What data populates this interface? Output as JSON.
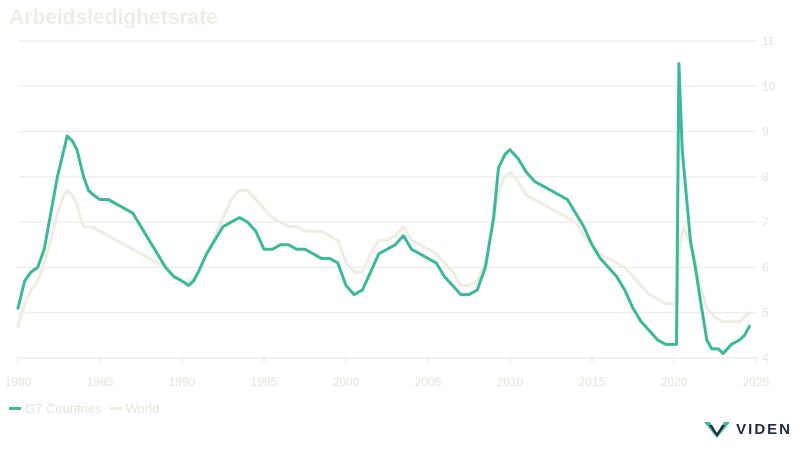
{
  "chart_data": {
    "type": "line",
    "title": "Arbeidsledighetsrate",
    "xlim": [
      1980,
      2025
    ],
    "ylim": [
      4,
      11
    ],
    "x_ticks": [
      1980,
      1985,
      1990,
      1995,
      2000,
      2005,
      2010,
      2015,
      2020,
      2025
    ],
    "y_ticks": [
      4,
      5,
      6,
      7,
      8,
      9,
      10,
      11
    ],
    "grid": true,
    "legend_position": "bottom-left",
    "series": [
      {
        "name": "G7 Countries",
        "color": "#3db89a",
        "points": [
          [
            1980.0,
            5.1
          ],
          [
            1980.4,
            5.7
          ],
          [
            1980.8,
            5.9
          ],
          [
            1981.2,
            6.0
          ],
          [
            1981.6,
            6.4
          ],
          [
            1982.0,
            7.2
          ],
          [
            1982.4,
            8.0
          ],
          [
            1982.8,
            8.6
          ],
          [
            1983.0,
            8.9
          ],
          [
            1983.3,
            8.8
          ],
          [
            1983.6,
            8.6
          ],
          [
            1983.8,
            8.3
          ],
          [
            1984.0,
            8.0
          ],
          [
            1984.3,
            7.7
          ],
          [
            1984.6,
            7.6
          ],
          [
            1985.0,
            7.5
          ],
          [
            1985.5,
            7.5
          ],
          [
            1986.0,
            7.4
          ],
          [
            1986.5,
            7.3
          ],
          [
            1987.0,
            7.2
          ],
          [
            1987.5,
            6.9
          ],
          [
            1988.0,
            6.6
          ],
          [
            1988.5,
            6.3
          ],
          [
            1989.0,
            6.0
          ],
          [
            1989.5,
            5.8
          ],
          [
            1990.0,
            5.7
          ],
          [
            1990.4,
            5.6
          ],
          [
            1990.7,
            5.7
          ],
          [
            1991.0,
            5.9
          ],
          [
            1991.5,
            6.3
          ],
          [
            1992.0,
            6.6
          ],
          [
            1992.5,
            6.9
          ],
          [
            1993.0,
            7.0
          ],
          [
            1993.5,
            7.1
          ],
          [
            1994.0,
            7.0
          ],
          [
            1994.5,
            6.8
          ],
          [
            1995.0,
            6.4
          ],
          [
            1995.5,
            6.4
          ],
          [
            1996.0,
            6.5
          ],
          [
            1996.5,
            6.5
          ],
          [
            1997.0,
            6.4
          ],
          [
            1997.5,
            6.4
          ],
          [
            1998.0,
            6.3
          ],
          [
            1998.5,
            6.2
          ],
          [
            1999.0,
            6.2
          ],
          [
            1999.5,
            6.1
          ],
          [
            2000.0,
            5.6
          ],
          [
            2000.5,
            5.4
          ],
          [
            2001.0,
            5.5
          ],
          [
            2001.5,
            5.9
          ],
          [
            2002.0,
            6.3
          ],
          [
            2002.5,
            6.4
          ],
          [
            2003.0,
            6.5
          ],
          [
            2003.5,
            6.7
          ],
          [
            2004.0,
            6.4
          ],
          [
            2004.5,
            6.3
          ],
          [
            2005.0,
            6.2
          ],
          [
            2005.5,
            6.1
          ],
          [
            2006.0,
            5.8
          ],
          [
            2006.5,
            5.6
          ],
          [
            2007.0,
            5.4
          ],
          [
            2007.5,
            5.4
          ],
          [
            2008.0,
            5.5
          ],
          [
            2008.5,
            6.0
          ],
          [
            2009.0,
            7.1
          ],
          [
            2009.3,
            8.2
          ],
          [
            2009.7,
            8.5
          ],
          [
            2010.0,
            8.6
          ],
          [
            2010.5,
            8.4
          ],
          [
            2011.0,
            8.1
          ],
          [
            2011.5,
            7.9
          ],
          [
            2012.0,
            7.8
          ],
          [
            2012.5,
            7.7
          ],
          [
            2013.0,
            7.6
          ],
          [
            2013.5,
            7.5
          ],
          [
            2014.0,
            7.2
          ],
          [
            2014.5,
            6.9
          ],
          [
            2015.0,
            6.5
          ],
          [
            2015.5,
            6.2
          ],
          [
            2016.0,
            6.0
          ],
          [
            2016.5,
            5.8
          ],
          [
            2017.0,
            5.5
          ],
          [
            2017.5,
            5.1
          ],
          [
            2018.0,
            4.8
          ],
          [
            2018.5,
            4.6
          ],
          [
            2019.0,
            4.4
          ],
          [
            2019.5,
            4.3
          ],
          [
            2020.0,
            4.3
          ],
          [
            2020.15,
            4.3
          ],
          [
            2020.3,
            10.5
          ],
          [
            2020.5,
            8.6
          ],
          [
            2020.8,
            7.4
          ],
          [
            2021.0,
            6.6
          ],
          [
            2021.3,
            6.0
          ],
          [
            2021.6,
            5.3
          ],
          [
            2022.0,
            4.4
          ],
          [
            2022.3,
            4.2
          ],
          [
            2022.7,
            4.2
          ],
          [
            2023.0,
            4.1
          ],
          [
            2023.5,
            4.3
          ],
          [
            2024.0,
            4.4
          ],
          [
            2024.3,
            4.5
          ],
          [
            2024.6,
            4.7
          ]
        ]
      },
      {
        "name": "World",
        "color": "#efece1",
        "points": [
          [
            1980.0,
            4.7
          ],
          [
            1980.4,
            5.2
          ],
          [
            1980.8,
            5.5
          ],
          [
            1981.2,
            5.7
          ],
          [
            1981.6,
            6.1
          ],
          [
            1982.0,
            6.6
          ],
          [
            1982.4,
            7.2
          ],
          [
            1982.8,
            7.6
          ],
          [
            1983.0,
            7.7
          ],
          [
            1983.3,
            7.6
          ],
          [
            1983.6,
            7.4
          ],
          [
            1983.8,
            7.1
          ],
          [
            1984.0,
            6.9
          ],
          [
            1984.5,
            6.9
          ],
          [
            1985.0,
            6.8
          ],
          [
            1985.5,
            6.7
          ],
          [
            1986.0,
            6.6
          ],
          [
            1986.5,
            6.5
          ],
          [
            1987.0,
            6.4
          ],
          [
            1987.5,
            6.3
          ],
          [
            1988.0,
            6.2
          ],
          [
            1988.5,
            6.1
          ],
          [
            1989.0,
            6.0
          ],
          [
            1989.5,
            5.8
          ],
          [
            1990.0,
            5.7
          ],
          [
            1990.5,
            5.7
          ],
          [
            1991.0,
            5.9
          ],
          [
            1991.5,
            6.3
          ],
          [
            1992.0,
            6.7
          ],
          [
            1992.5,
            7.1
          ],
          [
            1993.0,
            7.5
          ],
          [
            1993.5,
            7.7
          ],
          [
            1994.0,
            7.7
          ],
          [
            1994.5,
            7.5
          ],
          [
            1995.0,
            7.3
          ],
          [
            1995.5,
            7.1
          ],
          [
            1996.0,
            7.0
          ],
          [
            1996.5,
            6.9
          ],
          [
            1997.0,
            6.9
          ],
          [
            1997.5,
            6.8
          ],
          [
            1998.0,
            6.8
          ],
          [
            1998.5,
            6.8
          ],
          [
            1999.0,
            6.7
          ],
          [
            1999.5,
            6.6
          ],
          [
            2000.0,
            6.1
          ],
          [
            2000.5,
            5.9
          ],
          [
            2001.0,
            5.9
          ],
          [
            2001.5,
            6.3
          ],
          [
            2002.0,
            6.6
          ],
          [
            2002.5,
            6.6
          ],
          [
            2003.0,
            6.7
          ],
          [
            2003.5,
            6.9
          ],
          [
            2004.0,
            6.6
          ],
          [
            2004.5,
            6.5
          ],
          [
            2005.0,
            6.4
          ],
          [
            2005.5,
            6.3
          ],
          [
            2006.0,
            6.1
          ],
          [
            2006.5,
            5.9
          ],
          [
            2007.0,
            5.6
          ],
          [
            2007.5,
            5.6
          ],
          [
            2008.0,
            5.7
          ],
          [
            2008.5,
            6.1
          ],
          [
            2009.0,
            7.0
          ],
          [
            2009.3,
            7.7
          ],
          [
            2009.7,
            8.0
          ],
          [
            2010.0,
            8.1
          ],
          [
            2010.5,
            7.9
          ],
          [
            2011.0,
            7.6
          ],
          [
            2011.5,
            7.5
          ],
          [
            2012.0,
            7.4
          ],
          [
            2012.5,
            7.3
          ],
          [
            2013.0,
            7.2
          ],
          [
            2013.5,
            7.1
          ],
          [
            2014.0,
            7.0
          ],
          [
            2014.5,
            6.7
          ],
          [
            2015.0,
            6.5
          ],
          [
            2015.5,
            6.3
          ],
          [
            2016.0,
            6.2
          ],
          [
            2016.5,
            6.1
          ],
          [
            2017.0,
            6.0
          ],
          [
            2017.5,
            5.8
          ],
          [
            2018.0,
            5.6
          ],
          [
            2018.5,
            5.4
          ],
          [
            2019.0,
            5.3
          ],
          [
            2019.5,
            5.2
          ],
          [
            2020.0,
            5.2
          ],
          [
            2020.2,
            5.2
          ],
          [
            2020.35,
            6.5
          ],
          [
            2020.6,
            6.9
          ],
          [
            2021.0,
            6.5
          ],
          [
            2021.3,
            6.2
          ],
          [
            2021.6,
            5.6
          ],
          [
            2022.0,
            5.1
          ],
          [
            2022.5,
            4.9
          ],
          [
            2023.0,
            4.8
          ],
          [
            2023.5,
            4.8
          ],
          [
            2024.0,
            4.8
          ],
          [
            2024.3,
            4.9
          ],
          [
            2024.6,
            5.0
          ]
        ]
      }
    ]
  },
  "legend": {
    "g7_label": "G7 Countries",
    "world_label": "World",
    "g7_color": "#3db89a",
    "world_color": "#efece1"
  },
  "logo": {
    "text": "VIDEN",
    "icon": "viden-logo-icon"
  }
}
